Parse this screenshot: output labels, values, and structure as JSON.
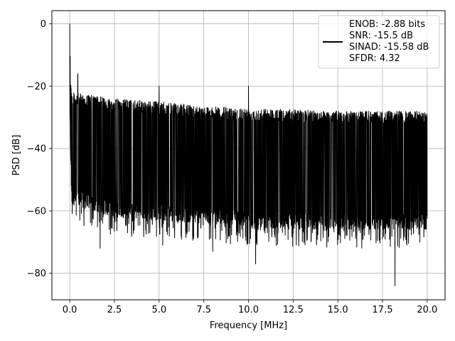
{
  "chart_data": {
    "type": "line",
    "title": "",
    "xlabel": "Frequency [MHz]",
    "ylabel": "PSD [dB]",
    "xlim": [
      -1.0,
      21.0
    ],
    "ylim": [
      -88.5,
      4.2
    ],
    "grid": true,
    "legend_position": "top-right",
    "x_ticks": [
      0.0,
      2.5,
      5.0,
      7.5,
      10.0,
      12.5,
      15.0,
      17.5,
      20.0
    ],
    "x_tick_labels": [
      "0.0",
      "2.5",
      "5.0",
      "7.5",
      "10.0",
      "12.5",
      "15.0",
      "17.5",
      "20.0"
    ],
    "y_ticks": [
      0,
      -20,
      -40,
      -60,
      -80
    ],
    "y_tick_labels": [
      "0",
      "−20",
      "−40",
      "−60",
      "−80"
    ],
    "series": [
      {
        "name": "",
        "color": "#000000",
        "x_range": [
          0.0,
          20.0
        ],
        "upper_envelope": [
          [
            0.0,
            0
          ],
          [
            0.05,
            -15
          ],
          [
            0.1,
            -22
          ],
          [
            2.5,
            -24
          ],
          [
            5.0,
            -25
          ],
          [
            7.5,
            -26.5
          ],
          [
            10.0,
            -27
          ],
          [
            12.5,
            -27.5
          ],
          [
            15.0,
            -28
          ],
          [
            17.5,
            -28
          ],
          [
            20.0,
            -28
          ]
        ],
        "lower_envelope": [
          [
            0.0,
            -30
          ],
          [
            0.1,
            -58
          ],
          [
            2.5,
            -62
          ],
          [
            5.0,
            -63
          ],
          [
            7.5,
            -64
          ],
          [
            10.0,
            -65
          ],
          [
            12.5,
            -66
          ],
          [
            15.0,
            -66
          ],
          [
            17.5,
            -66
          ],
          [
            20.0,
            -66
          ]
        ],
        "spurs": [
          [
            0.0,
            0
          ],
          [
            0.45,
            -16
          ],
          [
            5.0,
            -20
          ],
          [
            10.0,
            -20
          ]
        ],
        "deep_dips": [
          [
            1.7,
            -72
          ],
          [
            5.2,
            -71
          ],
          [
            8.0,
            -73
          ],
          [
            10.4,
            -77
          ],
          [
            18.2,
            -84
          ]
        ]
      }
    ],
    "legend": {
      "entries": [
        "ENOB: -2.88 bits",
        "SNR: -15.5 dB",
        "SINAD: -15.58 dB",
        "SFDR: 4.32"
      ]
    }
  }
}
